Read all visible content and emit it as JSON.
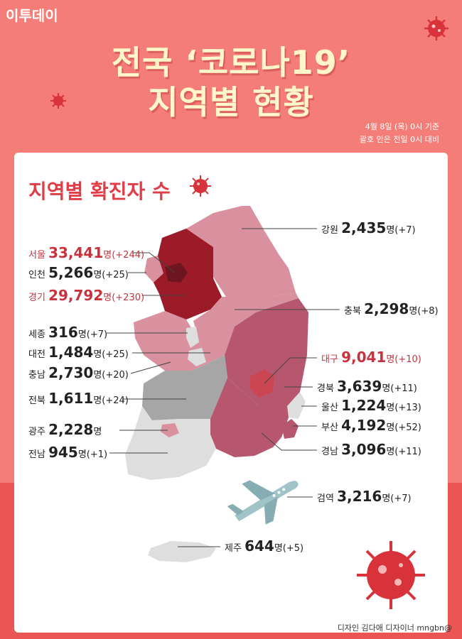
{
  "logo": "이투데이",
  "title_line1": "전국 ‘코로나19’",
  "title_line2": "지역별 현황",
  "basis_line1": "4월 8일 (목) 0시 기준",
  "basis_line2": "괄호 안은 전일 0시 대비",
  "heading": "지역별 확진자 수",
  "unit": "명",
  "regions": [
    {
      "key": "gangwon",
      "name": "강원",
      "count": "2,435",
      "change": "(+7)"
    },
    {
      "key": "seoul",
      "name": "서울",
      "count": "33,441",
      "change": "(+244)"
    },
    {
      "key": "incheon",
      "name": "인천",
      "count": "5,266",
      "change": "(+25)"
    },
    {
      "key": "gyeonggi",
      "name": "경기",
      "count": "29,792",
      "change": "(+230)"
    },
    {
      "key": "chungbuk",
      "name": "충북",
      "count": "2,298",
      "change": "(+8)"
    },
    {
      "key": "sejong",
      "name": "세종",
      "count": "316",
      "change": "(+7)"
    },
    {
      "key": "daejeon",
      "name": "대전",
      "count": "1,484",
      "change": "(+25)"
    },
    {
      "key": "daegu",
      "name": "대구",
      "count": "9,041",
      "change": "(+10)"
    },
    {
      "key": "chungnam",
      "name": "충남",
      "count": "2,730",
      "change": "(+20)"
    },
    {
      "key": "gyeongbuk",
      "name": "경북",
      "count": "3,639",
      "change": "(+11)"
    },
    {
      "key": "jeonbuk",
      "name": "전북",
      "count": "1,611",
      "change": "(+24)"
    },
    {
      "key": "ulsan",
      "name": "울산",
      "count": "1,224",
      "change": "(+13)"
    },
    {
      "key": "gwangju",
      "name": "광주",
      "count": "2,228",
      "change": ""
    },
    {
      "key": "busan",
      "name": "부산",
      "count": "4,192",
      "change": "(+52)"
    },
    {
      "key": "jeonnam",
      "name": "전남",
      "count": "945",
      "change": "(+1)"
    },
    {
      "key": "gyeongnam",
      "name": "경남",
      "count": "3,096",
      "change": "(+11)"
    },
    {
      "key": "quarantine",
      "name": "검역",
      "count": "3,216",
      "change": "(+7)"
    },
    {
      "key": "jeju",
      "name": "제주",
      "count": "644",
      "change": "(+5)"
    }
  ],
  "credit": "디자인 김다애 디자이너 mngbn@",
  "colors": {
    "background": "#f57d78",
    "title": "#fff7c9",
    "accent_red": "#c8323d",
    "seoul": "#6e1620",
    "gyeonggi": "#9b1c28",
    "gangwon": "#d9909f",
    "gyeongbuk": "#b7566f",
    "daegu": "#c94652",
    "gray_light": "#dedede",
    "gray_mid": "#a6a6a6"
  },
  "icons": [
    "virus-icon",
    "airplane-icon"
  ]
}
